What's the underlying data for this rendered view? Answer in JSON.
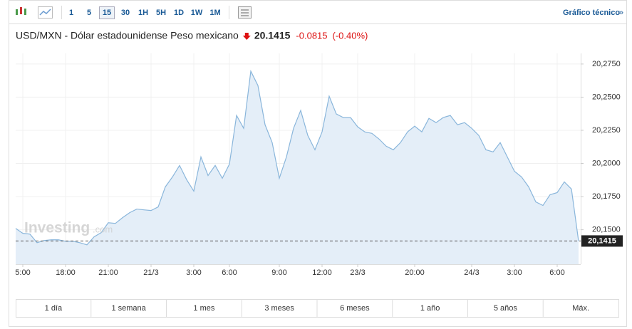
{
  "toolbar": {
    "intervals": [
      "1",
      "5",
      "15",
      "30",
      "1H",
      "5H",
      "1D",
      "1W",
      "1M"
    ],
    "active_interval": 2,
    "technical_link": "Gráfico técnico",
    "technical_arrow": "»"
  },
  "header": {
    "title": "USD/MXN - Dólar estadounidense Peso mexicano",
    "price": "20.1415",
    "change": "-0.0815",
    "change_percent": "(-0.40%)"
  },
  "watermark": {
    "brand": "Investing",
    "suffix": ".com"
  },
  "range_buttons": [
    "1 día",
    "1 semana",
    "1 mes",
    "3 meses",
    "6 meses",
    "1 año",
    "5 años",
    "Máx."
  ],
  "chart_data": {
    "type": "area",
    "color": "#8ab6db",
    "fill": "#e4eef8",
    "grid": true,
    "categories": [
      null,
      "5:00",
      null,
      null,
      null,
      null,
      null,
      "18:00",
      null,
      null,
      null,
      null,
      null,
      "21:00",
      null,
      null,
      null,
      null,
      null,
      "21/3",
      null,
      null,
      null,
      null,
      null,
      "3:00",
      null,
      null,
      null,
      null,
      "6:00",
      null,
      null,
      null,
      null,
      null,
      null,
      "9:00",
      null,
      null,
      null,
      null,
      null,
      "12:00",
      null,
      null,
      null,
      null,
      "23/3",
      null,
      null,
      null,
      null,
      null,
      null,
      null,
      "20:00",
      null,
      null,
      null,
      null,
      null,
      null,
      null,
      "24/3",
      null,
      null,
      null,
      null,
      null,
      "3:00",
      null,
      null,
      null,
      null,
      null,
      "6:00",
      null,
      null,
      null
    ],
    "values": [
      20.151,
      20.1473,
      20.1467,
      20.1402,
      20.1419,
      20.1424,
      20.1424,
      20.1413,
      20.1413,
      20.1402,
      20.1386,
      20.1446,
      20.1478,
      20.1553,
      20.1548,
      20.1591,
      20.1629,
      20.1656,
      20.165,
      20.1645,
      20.1672,
      20.1823,
      20.1898,
      20.1985,
      20.1877,
      20.1791,
      20.2049,
      20.1909,
      20.1985,
      20.1888,
      20.1995,
      20.2362,
      20.2265,
      20.2696,
      20.2588,
      20.2292,
      20.2157,
      20.1888,
      20.2049,
      20.2265,
      20.24,
      20.2211,
      20.2103,
      20.2238,
      20.2507,
      20.2373,
      20.2346,
      20.2346,
      20.2276,
      20.2238,
      20.2227,
      20.2184,
      20.213,
      20.2103,
      20.2157,
      20.2238,
      20.2281,
      20.2238,
      20.234,
      20.2308,
      20.2346,
      20.2362,
      20.2292,
      20.2308,
      20.2265,
      20.2211,
      20.2103,
      20.2087,
      20.2157,
      20.2049,
      20.1941,
      20.1898,
      20.1823,
      20.171,
      20.1683,
      20.1764,
      20.178,
      20.1861,
      20.1807,
      20.1415
    ],
    "ylim": [
      20.124,
      20.283
    ],
    "yticks": [
      {
        "value": 20.15,
        "label": "20,1500"
      },
      {
        "value": 20.175,
        "label": "20,1750"
      },
      {
        "value": 20.2,
        "label": "20,2000"
      },
      {
        "value": 20.225,
        "label": "20,2250"
      },
      {
        "value": 20.25,
        "label": "20,2500"
      },
      {
        "value": 20.275,
        "label": "20,2750"
      }
    ],
    "last_price": {
      "value": 20.1415,
      "label": "20,1415"
    }
  }
}
